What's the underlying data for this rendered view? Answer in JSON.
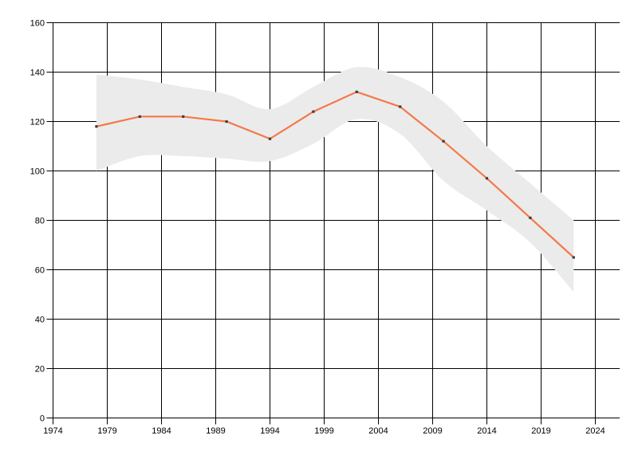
{
  "chart_data": {
    "type": "line",
    "title": "",
    "xlabel": "",
    "ylabel": "",
    "x": [
      1978,
      1982,
      1986,
      1990,
      1994,
      1998,
      2002,
      2006,
      2010,
      2014,
      2018,
      2022
    ],
    "series": [
      {
        "name": "main-series",
        "color": "#f4794a",
        "marker": "square",
        "marker_color": "#3d3d3d",
        "values": [
          118,
          122,
          122,
          120,
          113,
          124,
          132,
          126,
          112,
          97,
          81,
          65
        ]
      }
    ],
    "band": {
      "name": "uncertainty-band",
      "color": "#ebebeb",
      "upper": [
        139,
        137,
        134,
        131,
        125,
        134,
        142,
        138,
        128,
        110,
        95,
        80
      ],
      "lower": [
        100,
        106,
        106,
        105,
        104,
        111,
        121,
        115,
        96,
        84,
        71,
        51
      ]
    },
    "xlim": [
      1974,
      2024
    ],
    "ylim": [
      0,
      160
    ],
    "xticks": [
      1974,
      1979,
      1984,
      1989,
      1994,
      1999,
      2004,
      2009,
      2014,
      2019,
      2024
    ],
    "yticks": [
      0,
      20,
      40,
      60,
      80,
      100,
      120,
      140,
      160
    ],
    "grid": true,
    "legend_position": "none",
    "grid_color": "#000000",
    "tick_label_color": "#000000",
    "background_color": "#ffffff"
  }
}
